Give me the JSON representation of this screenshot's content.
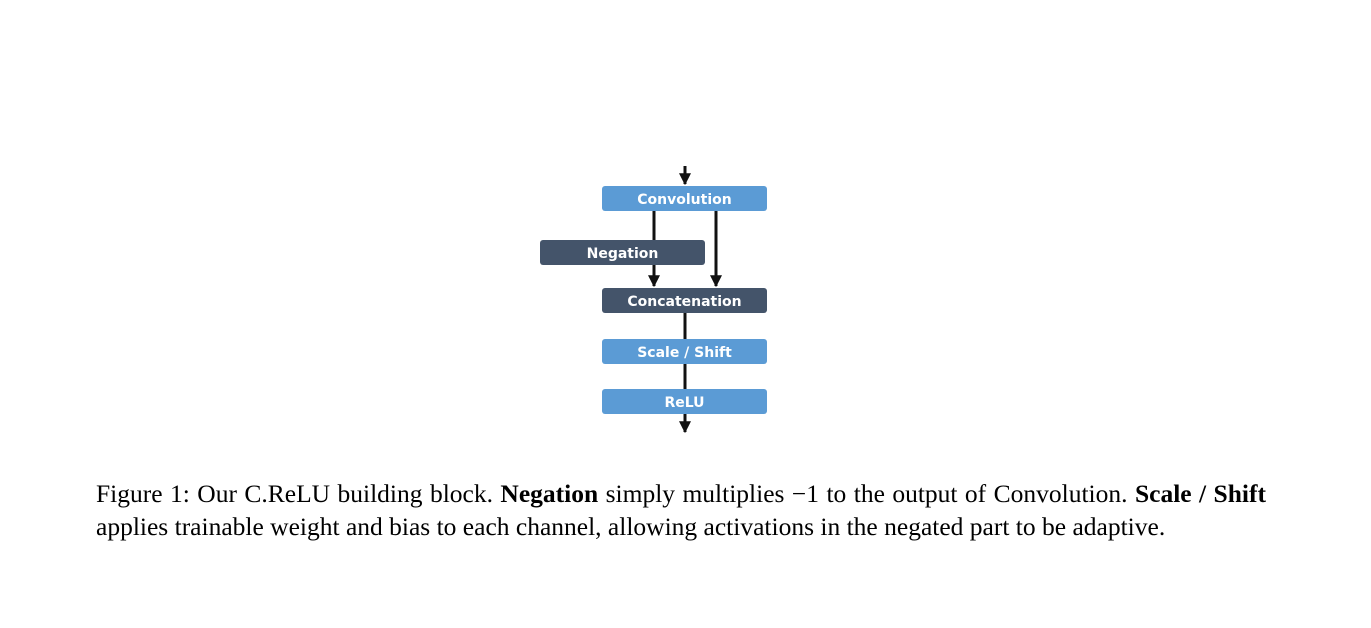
{
  "colors": {
    "light_block": "#5b9bd5",
    "dark_block": "#44546a",
    "arrow": "#111111"
  },
  "diagram": {
    "nodes": {
      "convolution": "Convolution",
      "negation": "Negation",
      "concatenation": "Concatenation",
      "scale_shift": "Scale / Shift",
      "relu": "ReLU"
    }
  },
  "caption": {
    "prefix": "Figure 1: Our C.ReLU building block. ",
    "negation_term": "Negation",
    "part1": " simply multiplies −1 to the output of Convolution. ",
    "scale_term": "Scale / Shift",
    "part2": " applies trainable weight and bias to each channel, allowing activations in the negated part to be adaptive."
  }
}
